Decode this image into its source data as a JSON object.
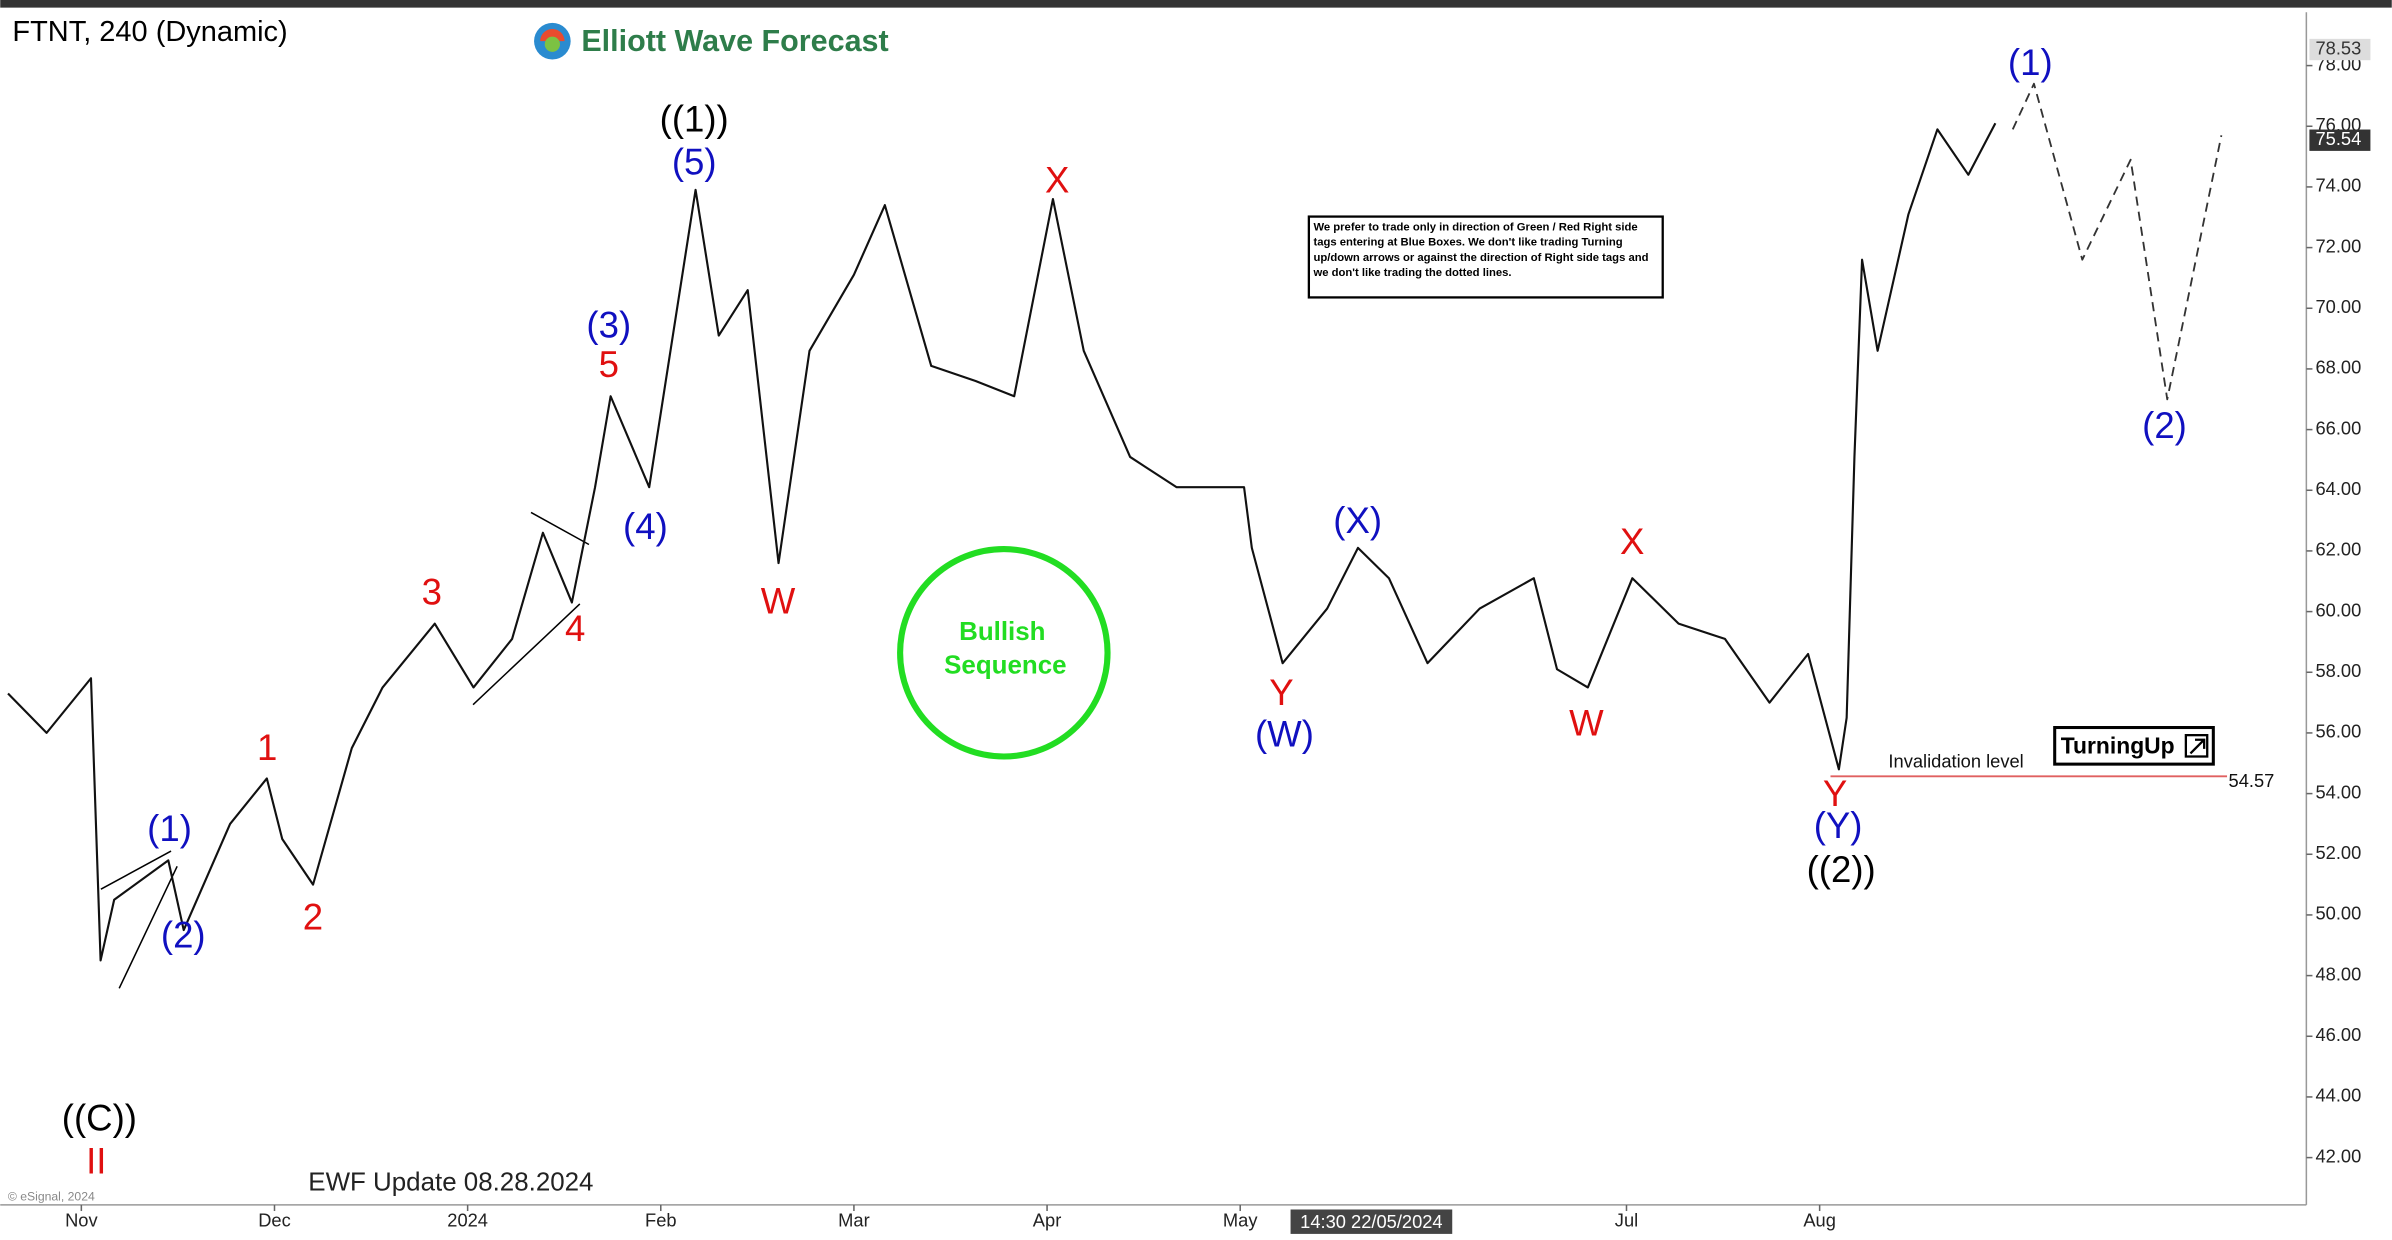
{
  "chart_data": {
    "type": "line",
    "title": "FTNT, 240 (Dynamic)",
    "brand": "Elliott Wave Forecast",
    "update": "EWF Update 08.28.2024",
    "copyright": "© eSignal, 2024",
    "crosshair_time": "14:30 22/05/2024",
    "circle_text": [
      "Bullish",
      "Sequence"
    ],
    "circle_color": "#22dd22",
    "notice": "We prefer to trade only in direction of Green / Red Right side tags entering at Blue Boxes. We don't like trading Turning up/down arrows or against the direction of Right side tags and we don't like trading the dotted lines.",
    "turning_label": "TurningUp",
    "invalidation": {
      "label": "Invalidation level",
      "value": 54.57,
      "color": "#e06060"
    },
    "price_tags": [
      78.53,
      75.54
    ],
    "xlim": [
      -0.42,
      11.52
    ],
    "ylim": [
      40.44,
      79.76
    ],
    "xticks": [
      {
        "value": 0,
        "label": "Nov"
      },
      {
        "value": 1,
        "label": "Dec"
      },
      {
        "value": 2,
        "label": "2024"
      },
      {
        "value": 3,
        "label": "Feb"
      },
      {
        "value": 4,
        "label": "Mar"
      },
      {
        "value": 5,
        "label": "Apr"
      },
      {
        "value": 6,
        "label": "May"
      },
      {
        "value": 8,
        "label": "Jul"
      },
      {
        "value": 9,
        "label": "Aug"
      }
    ],
    "yticks": [
      {
        "value": 42,
        "label": "42.00"
      },
      {
        "value": 44,
        "label": "44.00"
      },
      {
        "value": 46,
        "label": "46.00"
      },
      {
        "value": 48,
        "label": "48.00"
      },
      {
        "value": 50,
        "label": "50.00"
      },
      {
        "value": 52,
        "label": "52.00"
      },
      {
        "value": 54,
        "label": "54.00"
      },
      {
        "value": 56,
        "label": "56.00"
      },
      {
        "value": 58,
        "label": "58.00"
      },
      {
        "value": 60,
        "label": "60.00"
      },
      {
        "value": 62,
        "label": "62.00"
      },
      {
        "value": 64,
        "label": "64.00"
      },
      {
        "value": 66,
        "label": "66.00"
      },
      {
        "value": 68,
        "label": "68.00"
      },
      {
        "value": 70,
        "label": "70.00"
      },
      {
        "value": 72,
        "label": "72.00"
      },
      {
        "value": 74,
        "label": "74.00"
      },
      {
        "value": 76,
        "label": "76.00"
      },
      {
        "value": 78,
        "label": "78.00"
      }
    ],
    "series": [
      {
        "color": "#111111",
        "dashed": false,
        "x": [
          -0.38,
          -0.18,
          0.05,
          0.1,
          0.17,
          0.45,
          0.53,
          0.77,
          0.96,
          1.04,
          1.2,
          1.4,
          1.56,
          1.83,
          2.03,
          2.23,
          2.39,
          2.54,
          2.66,
          2.74,
          2.94,
          3.18,
          3.3,
          3.45,
          3.61,
          3.77,
          4.0,
          4.16,
          4.4,
          4.63,
          4.83,
          5.03,
          5.19,
          5.43,
          5.67,
          6.02,
          6.06,
          6.22,
          6.45,
          6.61,
          6.77,
          6.97,
          7.24,
          7.52,
          7.64,
          7.8,
          8.03,
          8.27,
          8.51,
          8.74,
          8.94,
          9.1,
          9.14,
          9.18,
          9.22,
          9.3,
          9.46,
          9.61,
          9.77,
          9.91
        ],
        "values": [
          57.3,
          56.0,
          57.8,
          48.5,
          50.5,
          51.8,
          49.5,
          53.0,
          54.5,
          52.5,
          51.0,
          55.5,
          57.5,
          59.6,
          57.5,
          59.1,
          62.6,
          60.3,
          64.1,
          67.1,
          64.1,
          73.9,
          69.1,
          70.6,
          61.6,
          68.6,
          71.1,
          73.4,
          68.1,
          67.6,
          67.1,
          73.6,
          68.6,
          65.1,
          64.1,
          64.1,
          62.1,
          58.3,
          60.1,
          62.1,
          61.1,
          58.3,
          60.1,
          61.1,
          58.1,
          57.5,
          61.1,
          59.6,
          59.1,
          57.0,
          58.6,
          54.8,
          56.5,
          65.1,
          71.6,
          68.6,
          73.1,
          75.9,
          74.4,
          76.1
        ]
      },
      {
        "color": "#333333",
        "dashed": true,
        "x": [
          10.0,
          10.11,
          10.36,
          10.61,
          10.8,
          11.08
        ],
        "values": [
          75.9,
          77.4,
          71.6,
          74.9,
          67.0,
          75.7
        ]
      }
    ],
    "annotations": [
      {
        "text": "((C))",
        "color": "#000000"
      },
      {
        "text": "II",
        "color": "#e01010"
      },
      {
        "text": "(1)",
        "color": "#1010c0"
      },
      {
        "text": "(2)",
        "color": "#1010c0"
      },
      {
        "text": "1",
        "color": "#e01010"
      },
      {
        "text": "2",
        "color": "#e01010"
      },
      {
        "text": "3",
        "color": "#e01010"
      },
      {
        "text": "4",
        "color": "#e01010"
      },
      {
        "text": "5",
        "color": "#e01010"
      },
      {
        "text": "(3)",
        "color": "#1010c0"
      },
      {
        "text": "(4)",
        "color": "#1010c0"
      },
      {
        "text": "((1))",
        "color": "#000000"
      },
      {
        "text": "(5)",
        "color": "#1010c0"
      },
      {
        "text": "W",
        "color": "#e01010"
      },
      {
        "text": "X",
        "color": "#e01010"
      },
      {
        "text": "Y",
        "color": "#e01010"
      },
      {
        "text": "(W)",
        "color": "#1010c0"
      },
      {
        "text": "(X)",
        "color": "#1010c0"
      },
      {
        "text": "W",
        "color": "#e01010"
      },
      {
        "text": "X",
        "color": "#e01010"
      },
      {
        "text": "Y",
        "color": "#e01010"
      },
      {
        "text": "(Y)",
        "color": "#1010c0"
      },
      {
        "text": "((2))",
        "color": "#000000"
      },
      {
        "text": "(1)",
        "color": "#1010c0"
      },
      {
        "text": "(2)",
        "color": "#1010c0"
      }
    ]
  }
}
